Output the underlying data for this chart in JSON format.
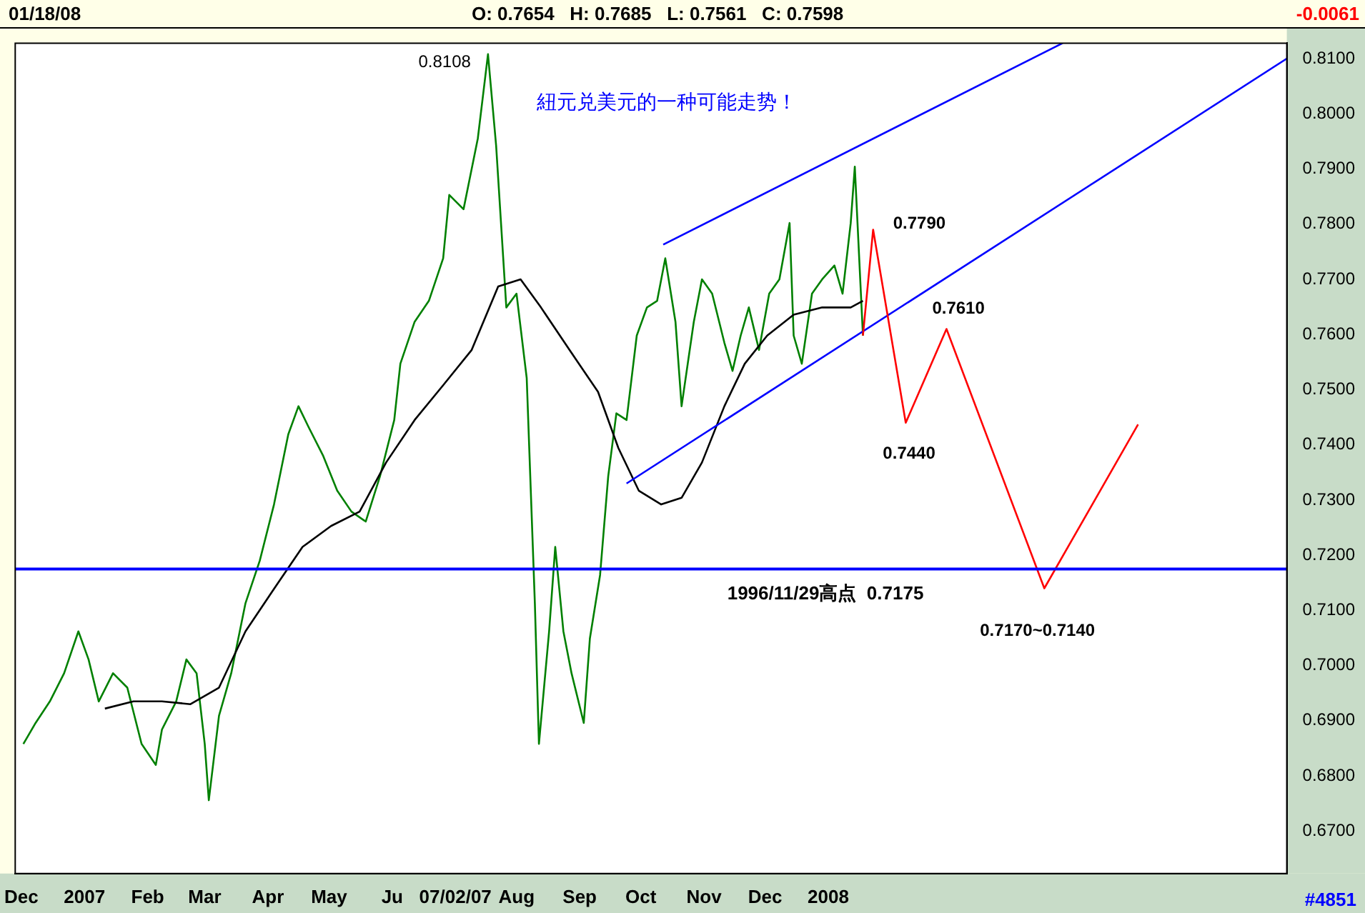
{
  "chart_data": {
    "type": "line",
    "title": "01/18/08",
    "annotations": [
      "O: 0.7654   H: 0.7685   L: 0.7561   C: 0.7598",
      "-0.0061",
      "#4851",
      "紐元兑美元的一种可能走势！",
      {
        "text": "0.8108",
        "x": "2007-07-18",
        "y": 0.8108
      },
      {
        "text": "0.7790",
        "x": "2008-01-23",
        "y": 0.779
      },
      {
        "text": "0.7610",
        "x": "2008-02-28",
        "y": 0.761
      },
      {
        "text": "0.7440",
        "x": "2008-02-08",
        "y": 0.744
      },
      {
        "text": "0.7170~0.7140",
        "x": "2008-04-16",
        "y": 0.714
      }
    ],
    "series": [
      {
        "color": "#008000",
        "x": [
          "2006-12-02",
          "2006-12-08",
          "2006-12-15",
          "2006-12-22",
          "2006-12-29",
          "2007-01-03",
          "2007-01-08",
          "2007-01-15",
          "2007-01-22",
          "2007-01-29",
          "2007-02-05",
          "2007-02-08",
          "2007-02-15",
          "2007-02-20",
          "2007-02-25",
          "2007-03-01",
          "2007-03-03",
          "2007-03-08",
          "2007-03-14",
          "2007-03-21",
          "2007-03-28",
          "2007-04-04",
          "2007-04-11",
          "2007-04-16",
          "2007-04-21",
          "2007-04-28",
          "2007-05-05",
          "2007-05-12",
          "2007-05-19",
          "2007-05-26",
          "2007-06-02",
          "2007-06-05",
          "2007-06-12",
          "2007-06-19",
          "2007-06-26",
          "2007-06-29",
          "2007-07-06",
          "2007-07-13",
          "2007-07-18",
          "2007-07-22",
          "2007-07-27",
          "2007-08-01",
          "2007-08-06",
          "2007-08-10",
          "2007-08-12",
          "2007-08-17",
          "2007-08-20",
          "2007-08-24",
          "2007-08-28",
          "2007-09-03",
          "2007-09-06",
          "2007-09-11",
          "2007-09-15",
          "2007-09-19",
          "2007-09-24",
          "2007-09-29",
          "2007-10-04",
          "2007-10-09",
          "2007-10-13",
          "2007-10-18",
          "2007-10-21",
          "2007-10-27",
          "2007-10-31",
          "2007-11-05",
          "2007-11-11",
          "2007-11-15",
          "2007-11-19",
          "2007-11-23",
          "2007-11-28",
          "2007-12-03",
          "2007-12-08",
          "2007-12-13",
          "2007-12-15",
          "2007-12-19",
          "2007-12-24",
          "2007-12-29",
          "2008-01-04",
          "2008-01-08",
          "2008-01-12",
          "2008-01-14",
          "2008-01-17",
          "2008-01-18"
        ],
        "values": [
          0.6858,
          0.6896,
          0.6935,
          0.6986,
          0.7062,
          0.7011,
          0.6935,
          0.6986,
          0.696,
          0.6858,
          0.682,
          0.6884,
          0.6935,
          0.7011,
          0.6986,
          0.6858,
          0.6756,
          0.6909,
          0.6986,
          0.7113,
          0.719,
          0.7292,
          0.7419,
          0.747,
          0.7432,
          0.7381,
          0.7317,
          0.7279,
          0.7261,
          0.7343,
          0.7445,
          0.7547,
          0.7623,
          0.7661,
          0.7738,
          0.7853,
          0.7827,
          0.7955,
          0.8108,
          0.7942,
          0.7649,
          0.7674,
          0.7521,
          0.7113,
          0.6858,
          0.7062,
          0.7215,
          0.7062,
          0.6986,
          0.6896,
          0.7049,
          0.7164,
          0.7343,
          0.7457,
          0.7445,
          0.7598,
          0.7649,
          0.7661,
          0.7738,
          0.7623,
          0.747,
          0.7623,
          0.77,
          0.7674,
          0.7585,
          0.7534,
          0.7598,
          0.7649,
          0.7572,
          0.7674,
          0.77,
          0.7802,
          0.7598,
          0.7547,
          0.7674,
          0.77,
          0.7725,
          0.7674,
          0.7802,
          0.7904,
          0.7674,
          0.7598
        ]
      },
      {
        "color": "#000000",
        "x": [
          "2007-01-11",
          "2007-01-25",
          "2007-02-08",
          "2007-02-22",
          "2007-03-08",
          "2007-03-21",
          "2007-04-04",
          "2007-04-18",
          "2007-05-02",
          "2007-05-16",
          "2007-05-29",
          "2007-06-12",
          "2007-06-26",
          "2007-07-10",
          "2007-07-23",
          "2007-08-03",
          "2007-08-13",
          "2007-08-27",
          "2007-09-10",
          "2007-09-20",
          "2007-09-30",
          "2007-10-11",
          "2007-10-21",
          "2007-10-31",
          "2007-11-11",
          "2007-11-21",
          "2007-12-02",
          "2007-12-15",
          "2007-12-29",
          "2008-01-12",
          "2008-01-18"
        ],
        "values": [
          0.6922,
          0.6935,
          0.6935,
          0.693,
          0.696,
          0.7062,
          0.7139,
          0.7215,
          0.7253,
          0.7279,
          0.7368,
          0.7445,
          0.7508,
          0.7572,
          0.7687,
          0.77,
          0.7649,
          0.7572,
          0.7496,
          0.7394,
          0.7317,
          0.7292,
          0.7304,
          0.7368,
          0.747,
          0.7547,
          0.7598,
          0.7636,
          0.7649,
          0.7649,
          0.7661
        ]
      },
      {
        "color": "#0000ff",
        "x": [
          "2007-10-12",
          "2008-04-25"
        ],
        "values": [
          0.7763,
          0.8128
        ]
      },
      {
        "color": "#0000ff",
        "x": [
          "2007-09-24",
          "2008-08-13"
        ],
        "values": [
          0.733,
          0.81
        ]
      },
      {
        "color": "#ff0000",
        "x": [
          "2008-01-18",
          "2008-01-23",
          "2008-02-08",
          "2008-02-28",
          "2008-04-16",
          "2008-06-01"
        ],
        "values": [
          0.7598,
          0.779,
          0.744,
          0.761,
          0.714,
          0.7437
        ]
      }
    ],
    "xlim": [
      "2006-11-28",
      "2008-08-13"
    ],
    "xticks": [
      {
        "value": "2006-12-01",
        "label": "Dec"
      },
      {
        "value": "2007-01-01",
        "label": "2007"
      },
      {
        "value": "2007-02-01",
        "label": "Feb"
      },
      {
        "value": "2007-03-01",
        "label": "Mar"
      },
      {
        "value": "2007-04-01",
        "label": "Apr"
      },
      {
        "value": "2007-05-01",
        "label": "May"
      },
      {
        "value": "2007-06-01",
        "label": "Ju"
      },
      {
        "value": "2007-07-02",
        "label": "07/02/07"
      },
      {
        "value": "2007-08-01",
        "label": "Aug"
      },
      {
        "value": "2007-09-01",
        "label": "Sep"
      },
      {
        "value": "2007-10-01",
        "label": "Oct"
      },
      {
        "value": "2007-11-01",
        "label": "Nov"
      },
      {
        "value": "2007-12-01",
        "label": "Dec"
      },
      {
        "value": "2008-01-01",
        "label": "2008"
      }
    ],
    "ylim": [
      0.6623,
      0.8128
    ],
    "yticks": [
      {
        "value": 0.67,
        "label": "0.6700"
      },
      {
        "value": 0.68,
        "label": "0.6800"
      },
      {
        "value": 0.69,
        "label": "0.6900"
      },
      {
        "value": 0.7,
        "label": "0.7000"
      },
      {
        "value": 0.71,
        "label": "0.7100"
      },
      {
        "value": 0.72,
        "label": "0.7200"
      },
      {
        "value": 0.73,
        "label": "0.7300"
      },
      {
        "value": 0.74,
        "label": "0.7400"
      },
      {
        "value": 0.75,
        "label": "0.7500"
      },
      {
        "value": 0.76,
        "label": "0.7600"
      },
      {
        "value": 0.77,
        "label": "0.7700"
      },
      {
        "value": 0.78,
        "label": "0.7800"
      },
      {
        "value": 0.79,
        "label": "0.7900"
      },
      {
        "value": 0.8,
        "label": "0.8000"
      },
      {
        "value": 0.81,
        "label": "0.8100"
      }
    ],
    "ref_lines": [
      {
        "axis": "y",
        "value": 0.7175,
        "label": "1996/11/29高点  0.7175",
        "color": "#0000ff"
      }
    ],
    "marker": "none",
    "line_style": "solid",
    "grid": false,
    "legend": false
  }
}
